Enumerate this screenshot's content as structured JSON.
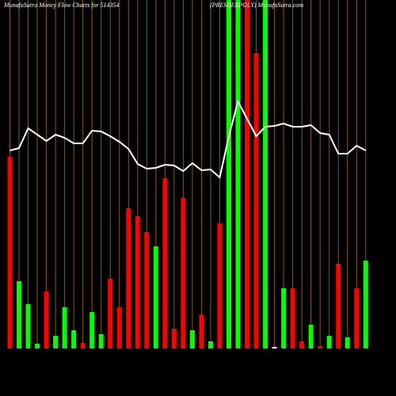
{
  "chart_data": {
    "type": "bar",
    "title": "MunafaSutra  Money Flow  Charts for 514354",
    "subtitle": "(PREMIERPOLY) MunafaSutra.com",
    "categories": [
      null,
      null,
      null,
      null,
      null,
      null,
      null,
      null,
      null,
      null,
      null,
      null,
      null,
      null,
      null,
      null,
      null,
      null,
      null,
      null,
      null,
      null,
      null,
      null,
      null,
      null,
      null,
      null,
      null,
      null,
      null,
      null,
      null,
      null,
      null,
      null,
      null,
      null,
      null,
      null
    ],
    "values": [
      242,
      85,
      56,
      6,
      72,
      16,
      52,
      23,
      7,
      46,
      18,
      88,
      52,
      177,
      167,
      147,
      129,
      215,
      25,
      190,
      23,
      43,
      9,
      158,
      440,
      440,
      440,
      373,
      440,
      2,
      76,
      76,
      9,
      30,
      3,
      16,
      107,
      14,
      76,
      111
    ],
    "colors": [
      "#ff0000",
      "#00ff00",
      "#00ff00",
      "#00ff00",
      "#ff0000",
      "#00ff00",
      "#00ff00",
      "#00ff00",
      "#ff0000",
      "#00ff00",
      "#00ff00",
      "#ff0000",
      "#ff0000",
      "#ff0000",
      "#ff0000",
      "#ff0000",
      "#00ff00",
      "#ff0000",
      "#ff0000",
      "#ff0000",
      "#00ff00",
      "#ff0000",
      "#00ff00",
      "#ff0000",
      "#00ff00",
      "#00ff00",
      "#ff0000",
      "#ff0000",
      "#00ff00",
      "#ffffff",
      "#00ff00",
      "#ff0000",
      "#ff0000",
      "#00ff00",
      "#ff0000",
      "#00ff00",
      "#ff0000",
      "#00ff00",
      "#ff0000",
      "#00ff00"
    ],
    "line_values": [
      250,
      253,
      278,
      270,
      262,
      270,
      266,
      259,
      259,
      275,
      274,
      268,
      261,
      252,
      233,
      227,
      228,
      232,
      231,
      224,
      234,
      225,
      226,
      216,
      268,
      312,
      290,
      268,
      280,
      281,
      284,
      280,
      280,
      282,
      272,
      270,
      246,
      246,
      256,
      250
    ],
    "line_color": "#ffffff",
    "grid_color": "#8b5a00",
    "ylim": [
      0,
      440
    ]
  }
}
